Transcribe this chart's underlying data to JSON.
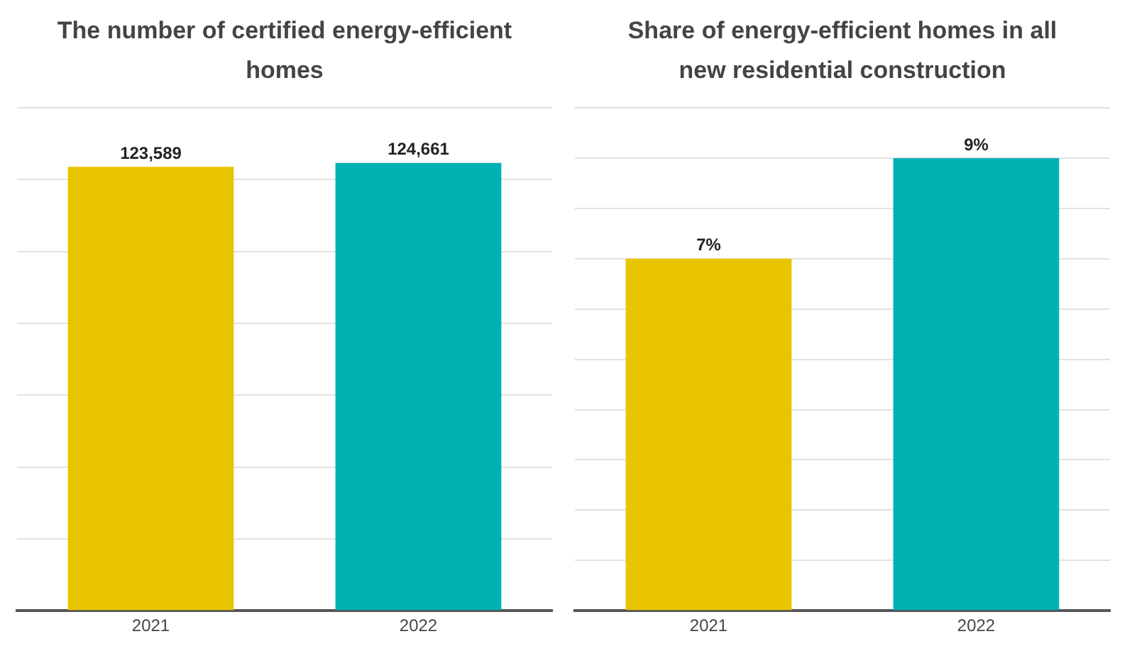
{
  "chart_data": [
    {
      "type": "bar",
      "title": "The number of certified energy-efficient homes",
      "categories": [
        "2021",
        "2022"
      ],
      "values": [
        123589,
        124661
      ],
      "colors": [
        "#e9c400",
        "#00b1b4"
      ],
      "value_labels": [
        "123,589",
        "124,661"
      ],
      "ylim": [
        0,
        140000
      ],
      "yticks": [
        {
          "value": 0,
          "label": null
        },
        {
          "value": 20000,
          "label": null
        },
        {
          "value": 40000,
          "label": null
        },
        {
          "value": 60000,
          "label": null
        },
        {
          "value": 80000,
          "label": null
        },
        {
          "value": 100000,
          "label": null
        },
        {
          "value": 120000,
          "label": null
        },
        {
          "value": 140000,
          "label": null
        }
      ],
      "grid": "y",
      "tick_labels": "x"
    },
    {
      "type": "bar",
      "title": "Share of energy-efficient homes in all new residential construction",
      "categories": [
        "2021",
        "2022"
      ],
      "values": [
        7,
        9
      ],
      "colors": [
        "#e9c400",
        "#00b1b4"
      ],
      "value_labels": [
        "7%",
        "9%"
      ],
      "ylim": [
        0,
        10
      ],
      "yticks": [
        {
          "value": 0,
          "label": null
        },
        {
          "value": 1,
          "label": null
        },
        {
          "value": 2,
          "label": null
        },
        {
          "value": 3,
          "label": null
        },
        {
          "value": 4,
          "label": null
        },
        {
          "value": 5,
          "label": null
        },
        {
          "value": 6,
          "label": null
        },
        {
          "value": 7,
          "label": null
        },
        {
          "value": 8,
          "label": null
        },
        {
          "value": 9,
          "label": null
        },
        {
          "value": 10,
          "label": null
        }
      ],
      "grid": "y",
      "tick_labels": "x"
    }
  ]
}
